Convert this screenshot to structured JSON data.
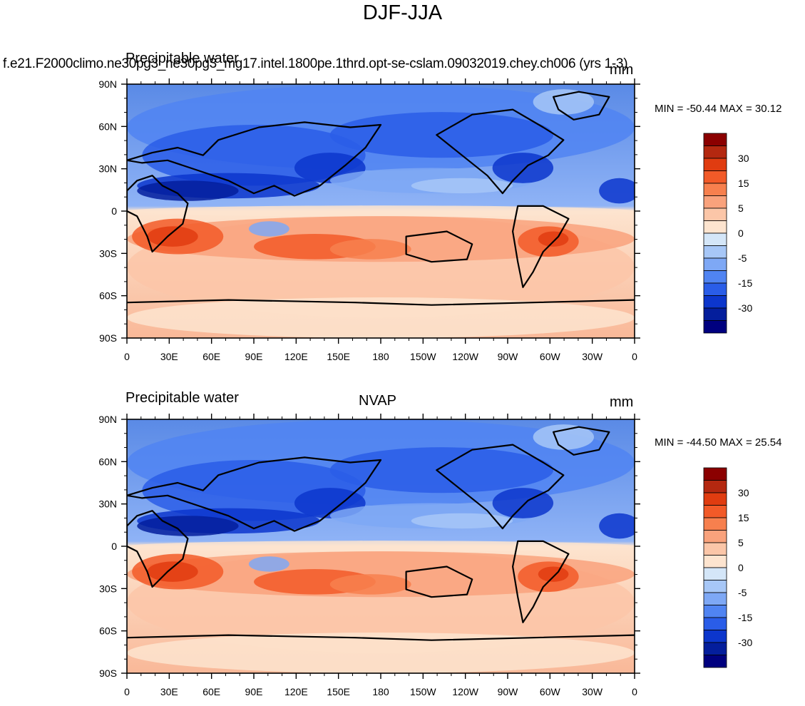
{
  "figure_title": "DJF-JJA",
  "panels": [
    {
      "left_string": "Precipitable water",
      "center_string": "f.e21.F2000climo.ne30pg3_ne30pg3_mg17.intel.1800pe.1thrd.opt-se-cslam.09032019.chey.ch006 (yrs 1-3)",
      "right_string": "mm",
      "minmax_label": "MIN = -50.44 MAX =  30.12",
      "min_value": -50.44,
      "max_value": 30.12
    },
    {
      "left_string": "Precipitable water",
      "center_string": "NVAP",
      "right_string": "mm",
      "minmax_label": "MIN = -44.50 MAX =  25.54",
      "min_value": -44.5,
      "max_value": 25.54
    }
  ],
  "lat_tick_labels": [
    "90N",
    "60N",
    "30N",
    "0",
    "30S",
    "60S",
    "90S"
  ],
  "lon_tick_labels": [
    "0",
    "30E",
    "60E",
    "90E",
    "120E",
    "150E",
    "180",
    "150W",
    "120W",
    "90W",
    "60W",
    "30W",
    "0"
  ],
  "colorbar": {
    "labels": [
      "30",
      "15",
      "5",
      "0",
      "-5",
      "-15",
      "-30"
    ],
    "colors_top_to_bottom": [
      "#8b0000",
      "#b42810",
      "#e03c10",
      "#f25a28",
      "#f7804e",
      "#f9a27c",
      "#fbc6a8",
      "#fde4cf",
      "#d4e6f8",
      "#a7c7f7",
      "#7ea8f5",
      "#5084f2",
      "#2a5de8",
      "#0c36cc",
      "#041e9c",
      "#00007f"
    ]
  },
  "map": {
    "projection": "cylindrical equidistant",
    "coastlines": true,
    "ocean_background_top_color": "#5a8ae6",
    "ocean_background_bottom_color": "#f9b898"
  }
}
